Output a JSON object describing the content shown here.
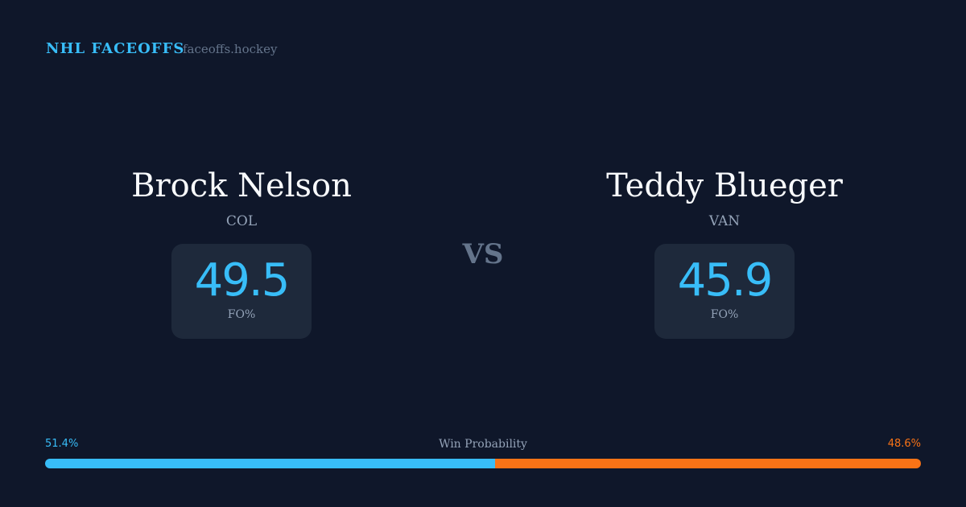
{
  "header": {
    "brand": "NHL FACEOFFS",
    "site": "faceoffs.hockey"
  },
  "players": [
    {
      "name": "Brock Nelson",
      "team": "COL",
      "fo_pct": "49.5",
      "fo_label": "FO%"
    },
    {
      "name": "Teddy Blueger",
      "team": "VAN",
      "fo_pct": "45.9",
      "fo_label": "FO%"
    }
  ],
  "vs": "VS",
  "win_probability": {
    "label": "Win Probability",
    "left": "51.4%",
    "right": "48.6%",
    "left_value": 51.4,
    "right_value": 48.6,
    "left_color": "#38bdf8",
    "right_color": "#f97316"
  }
}
